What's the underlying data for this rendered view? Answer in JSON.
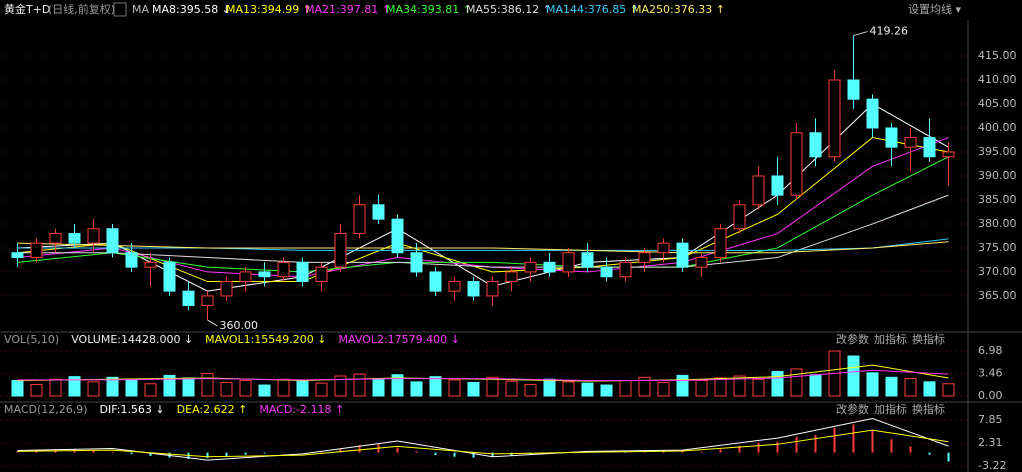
{
  "header": {
    "symbol": "黄金T+D",
    "period": "(日线,前复权)",
    "ma_label": "MA",
    "settings": "设置均线 ▾"
  },
  "chart_data": [
    {
      "type": "candlestick",
      "up_color": "#ff3c3c",
      "down_color": "#54ffff",
      "ohlc": [
        [
          374,
          376,
          371,
          373
        ],
        [
          373,
          377,
          372,
          376
        ],
        [
          376,
          379,
          374,
          378
        ],
        [
          378,
          380,
          375,
          376
        ],
        [
          376,
          381,
          374,
          379
        ],
        [
          379,
          380,
          373,
          374
        ],
        [
          374,
          376,
          370,
          371
        ],
        [
          371,
          374,
          367,
          372
        ],
        [
          372,
          373,
          365,
          366
        ],
        [
          366,
          368,
          362,
          363
        ],
        [
          363,
          366,
          360,
          365
        ],
        [
          365,
          369,
          364,
          368
        ],
        [
          368,
          371,
          366,
          370
        ],
        [
          370,
          372,
          367,
          369
        ],
        [
          369,
          373,
          368,
          372
        ],
        [
          372,
          373,
          367,
          368
        ],
        [
          368,
          372,
          366,
          371
        ],
        [
          371,
          380,
          370,
          378
        ],
        [
          378,
          386,
          377,
          384
        ],
        [
          384,
          386,
          380,
          381
        ],
        [
          381,
          382,
          373,
          374
        ],
        [
          374,
          376,
          369,
          370
        ],
        [
          370,
          371,
          365,
          366
        ],
        [
          366,
          369,
          364,
          368
        ],
        [
          368,
          369,
          364,
          365
        ],
        [
          365,
          369,
          363,
          368
        ],
        [
          368,
          371,
          366,
          370
        ],
        [
          370,
          373,
          368,
          372
        ],
        [
          372,
          374,
          369,
          370
        ],
        [
          370,
          375,
          369,
          374
        ],
        [
          374,
          376,
          370,
          371
        ],
        [
          371,
          373,
          368,
          369
        ],
        [
          369,
          373,
          368,
          372
        ],
        [
          372,
          375,
          370,
          374
        ],
        [
          374,
          377,
          372,
          376
        ],
        [
          376,
          377,
          370,
          371
        ],
        [
          371,
          374,
          369,
          373
        ],
        [
          373,
          380,
          372,
          379
        ],
        [
          379,
          385,
          378,
          384
        ],
        [
          384,
          392,
          383,
          390
        ],
        [
          390,
          394,
          384,
          386
        ],
        [
          386,
          401,
          385,
          399
        ],
        [
          399,
          402,
          392,
          394
        ],
        [
          394,
          412,
          393,
          410
        ],
        [
          410,
          419.26,
          404,
          406
        ],
        [
          406,
          407,
          398,
          400
        ],
        [
          400,
          401,
          392,
          396
        ],
        [
          396,
          400,
          391,
          398
        ],
        [
          398,
          402,
          393,
          394
        ],
        [
          394,
          397,
          388,
          395
        ]
      ],
      "ylim": [
        357.9,
        422.5
      ],
      "yticks": [
        {
          "value": 365,
          "label": "365.00"
        },
        {
          "value": 370,
          "label": "370.00"
        },
        {
          "value": 375,
          "label": "375.00"
        },
        {
          "value": 380,
          "label": "380.00"
        },
        {
          "value": 385,
          "label": "385.00"
        },
        {
          "value": 390,
          "label": "390.00"
        },
        {
          "value": 395,
          "label": "395.00"
        },
        {
          "value": 400,
          "label": "400.00"
        },
        {
          "value": 405,
          "label": "405.00"
        },
        {
          "value": 410,
          "label": "410.00"
        },
        {
          "value": 415,
          "label": "415.00"
        }
      ],
      "high_label": 419.26,
      "low_label": {
        "value": 360,
        "label": "360.00"
      },
      "indicators": [
        {
          "name": "MA8:395.58 ↓",
          "color": "#ffffff",
          "x": [
            0,
            5,
            10,
            15,
            20,
            25,
            30,
            35,
            40,
            45,
            49
          ],
          "values": [
            375,
            376,
            366,
            369,
            379,
            367,
            372,
            373,
            386,
            405,
            396
          ]
        },
        {
          "name": "MA13:394.99 ↑",
          "color": "#ffff00",
          "x": [
            0,
            5,
            10,
            15,
            20,
            25,
            30,
            35,
            40,
            45,
            49
          ],
          "values": [
            374,
            376,
            368,
            368,
            376,
            370,
            371,
            373,
            382,
            398,
            395
          ]
        },
        {
          "name": "MA21:397.81 ↑",
          "color": "#ff33ff",
          "x": [
            0,
            5,
            10,
            15,
            20,
            25,
            30,
            35,
            40,
            45,
            49
          ],
          "values": [
            373,
            375,
            370,
            369,
            373,
            371,
            370,
            372,
            378,
            392,
            398
          ]
        },
        {
          "name": "MA34:393.81 ↑",
          "color": "#33ff33",
          "x": [
            0,
            5,
            10,
            15,
            20,
            25,
            30,
            35,
            40,
            45,
            49
          ],
          "values": [
            372,
            374,
            371,
            370,
            372,
            372,
            371,
            371,
            375,
            386,
            394
          ]
        },
        {
          "name": "MA55:386.12 ↑",
          "color": "#dddddd",
          "x": [
            0,
            5,
            10,
            15,
            20,
            25,
            30,
            35,
            40,
            45,
            49
          ],
          "values": [
            374,
            374,
            373,
            372,
            372,
            371,
            371,
            371,
            373,
            380,
            386
          ]
        },
        {
          "name": "MA144:376.85 ↑",
          "color": "#33ccff",
          "x": [
            0,
            5,
            10,
            15,
            20,
            25,
            30,
            35,
            40,
            45,
            49
          ],
          "values": [
            375,
            375,
            375,
            374.5,
            374.5,
            374.5,
            374.5,
            374.5,
            374.5,
            375,
            376.9
          ]
        },
        {
          "name": "MA250:376.33 ↑",
          "color": "#ffee66",
          "x": [
            0,
            5,
            10,
            15,
            20,
            25,
            30,
            35,
            40,
            45,
            49
          ],
          "values": [
            376,
            375.5,
            375,
            375,
            375,
            375,
            374.5,
            374,
            374,
            375,
            376.3
          ]
        }
      ]
    },
    {
      "type": "bar",
      "title": "VOL(5,10)",
      "label": "VOLUME:14428.000 ↓",
      "buttons": [
        "改参数",
        "加指标",
        "换指标"
      ],
      "values": [
        2.4,
        1.8,
        2.6,
        3.0,
        2.2,
        2.9,
        2.5,
        1.9,
        3.2,
        2.8,
        3.5,
        2.1,
        2.4,
        1.7,
        2.6,
        2.3,
        2.0,
        3.1,
        3.4,
        2.7,
        3.3,
        2.2,
        3.0,
        2.5,
        2.1,
        2.9,
        2.3,
        1.8,
        2.6,
        2.2,
        2.0,
        1.7,
        2.4,
        2.9,
        2.1,
        3.2,
        2.4,
        2.8,
        3.1,
        2.6,
        3.8,
        4.2,
        3.3,
        6.98,
        6.2,
        3.6,
        2.9,
        2.7,
        2.2,
        1.9
      ],
      "ylim": [
        -0.62,
        8.07
      ],
      "yticks": [
        {
          "value": 0,
          "label": "0.00"
        },
        3.46,
        6.98
      ],
      "series": [
        {
          "name": "MAVOL1:15549.200 ↓",
          "color": "#ffff00",
          "x": [
            0,
            5,
            10,
            15,
            20,
            25,
            30,
            35,
            40,
            45,
            49
          ],
          "values": [
            2.4,
            2.6,
            2.8,
            2.4,
            2.8,
            2.6,
            2.3,
            2.5,
            3.0,
            4.8,
            2.8
          ]
        },
        {
          "name": "MAVOL2:17579.400 ↓",
          "color": "#ff33ff",
          "x": [
            0,
            5,
            10,
            15,
            20,
            25,
            30,
            35,
            40,
            45,
            49
          ],
          "values": [
            2.5,
            2.5,
            2.7,
            2.5,
            2.7,
            2.7,
            2.4,
            2.4,
            2.8,
            4.0,
            3.4
          ]
        }
      ]
    },
    {
      "type": "macd",
      "title": "MACD(12,26,9)",
      "buttons": [
        "改参数",
        "加指标",
        "换指标"
      ],
      "values": [
        0.3,
        0.5,
        0.8,
        0.9,
        0.7,
        0.2,
        -0.4,
        -0.8,
        -1.2,
        -1.5,
        -1.3,
        -0.9,
        -0.5,
        -0.2,
        0.1,
        0.0,
        0.2,
        0.9,
        1.8,
        2.0,
        1.2,
        0.3,
        -0.6,
        -1.0,
        -1.2,
        -1.0,
        -0.7,
        -0.4,
        -0.2,
        0.1,
        0.2,
        0.0,
        -0.1,
        0.2,
        0.4,
        0.3,
        0.2,
        0.8,
        1.6,
        2.4,
        2.6,
        3.8,
        4.2,
        6.0,
        6.8,
        5.2,
        3.2,
        1.5,
        -0.5,
        -2.118
      ],
      "label": "MACD:-2.118 ↑",
      "label_color": "#ff33ff",
      "ylim": [
        -4.18,
        9.29
      ],
      "yticks": [
        -3.22,
        2.31,
        7.85
      ],
      "series": [
        {
          "name": "DIF:1.563 ↓",
          "color": "#ffffff",
          "x": [
            0,
            5,
            10,
            15,
            20,
            25,
            30,
            35,
            40,
            45,
            49
          ],
          "values": [
            0.5,
            1.0,
            -1.8,
            -0.3,
            2.8,
            -1.0,
            0.3,
            0.6,
            3.5,
            8.2,
            1.563
          ]
        },
        {
          "name": "DEA:2.622 ↑",
          "color": "#ffff00",
          "x": [
            0,
            5,
            10,
            15,
            20,
            25,
            30,
            35,
            40,
            45,
            49
          ],
          "values": [
            0.3,
            0.6,
            -1.0,
            -0.6,
            1.5,
            -0.3,
            0.1,
            0.4,
            2.0,
            5.4,
            2.622
          ]
        }
      ]
    }
  ]
}
